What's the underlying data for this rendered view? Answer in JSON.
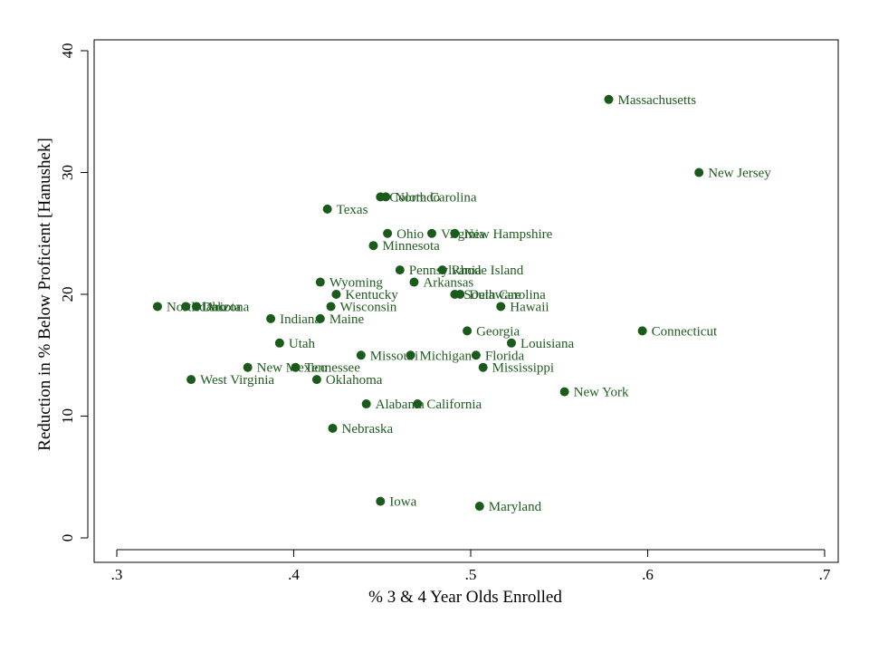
{
  "chart_data": {
    "type": "scatter",
    "title": "",
    "xlabel": "% 3 & 4 Year Olds Enrolled",
    "ylabel": "Reduction in % Below Proficient [Hanushek]",
    "xlim": [
      0.3,
      0.7
    ],
    "ylim": [
      0,
      40
    ],
    "x_ticks": [
      0.3,
      0.4,
      0.5,
      0.6,
      0.7
    ],
    "x_tick_labels": [
      ".3",
      ".4",
      ".5",
      ".6",
      ".7"
    ],
    "y_ticks": [
      0,
      10,
      20,
      30,
      40
    ],
    "y_tick_labels": [
      "0",
      "10",
      "20",
      "30",
      "40"
    ],
    "grid": false,
    "marker_color": "#1a5a1a",
    "label_color": "#1f5c1f",
    "points": [
      {
        "label": "Massachusetts",
        "x": 0.578,
        "y": 36
      },
      {
        "label": "New Jersey",
        "x": 0.629,
        "y": 30
      },
      {
        "label": "Colorado",
        "x": 0.449,
        "y": 28
      },
      {
        "label": "North Carolina",
        "x": 0.452,
        "y": 28
      },
      {
        "label": "Texas",
        "x": 0.419,
        "y": 27
      },
      {
        "label": "Ohio",
        "x": 0.453,
        "y": 25
      },
      {
        "label": "Virginia",
        "x": 0.478,
        "y": 25
      },
      {
        "label": "New Hampshire",
        "x": 0.491,
        "y": 25
      },
      {
        "label": "Minnesota",
        "x": 0.445,
        "y": 24
      },
      {
        "label": "Pennsylvania",
        "x": 0.46,
        "y": 22
      },
      {
        "label": "Rhode Island",
        "x": 0.484,
        "y": 22
      },
      {
        "label": "Wyoming",
        "x": 0.415,
        "y": 21
      },
      {
        "label": "Arkansas",
        "x": 0.468,
        "y": 21
      },
      {
        "label": "Kentucky",
        "x": 0.424,
        "y": 20
      },
      {
        "label": "South Carolina",
        "x": 0.491,
        "y": 20
      },
      {
        "label": "Delaware",
        "x": 0.494,
        "y": 20
      },
      {
        "label": "North Dakota",
        "x": 0.323,
        "y": 19
      },
      {
        "label": "Idaho",
        "x": 0.339,
        "y": 19
      },
      {
        "label": "Arizona",
        "x": 0.345,
        "y": 19
      },
      {
        "label": "Wisconsin",
        "x": 0.421,
        "y": 19
      },
      {
        "label": "Hawaii",
        "x": 0.517,
        "y": 19
      },
      {
        "label": "Indiana",
        "x": 0.387,
        "y": 18
      },
      {
        "label": "Maine",
        "x": 0.415,
        "y": 18
      },
      {
        "label": "Georgia",
        "x": 0.498,
        "y": 17
      },
      {
        "label": "Connecticut",
        "x": 0.597,
        "y": 17
      },
      {
        "label": "Utah",
        "x": 0.392,
        "y": 16
      },
      {
        "label": "Louisiana",
        "x": 0.523,
        "y": 16
      },
      {
        "label": "Missouri",
        "x": 0.438,
        "y": 15
      },
      {
        "label": "Michigan",
        "x": 0.466,
        "y": 15
      },
      {
        "label": "Florida",
        "x": 0.503,
        "y": 15
      },
      {
        "label": "New Mexico",
        "x": 0.374,
        "y": 14
      },
      {
        "label": "Tennessee",
        "x": 0.401,
        "y": 14
      },
      {
        "label": "Mississippi",
        "x": 0.507,
        "y": 14
      },
      {
        "label": "West Virginia",
        "x": 0.342,
        "y": 13
      },
      {
        "label": "Oklahoma",
        "x": 0.413,
        "y": 13
      },
      {
        "label": "New York",
        "x": 0.553,
        "y": 12
      },
      {
        "label": "Alabama",
        "x": 0.441,
        "y": 11
      },
      {
        "label": "California",
        "x": 0.47,
        "y": 11
      },
      {
        "label": "Nebraska",
        "x": 0.422,
        "y": 9
      },
      {
        "label": "Iowa",
        "x": 0.449,
        "y": 3
      },
      {
        "label": "Maryland",
        "x": 0.505,
        "y": 2.6
      }
    ]
  }
}
